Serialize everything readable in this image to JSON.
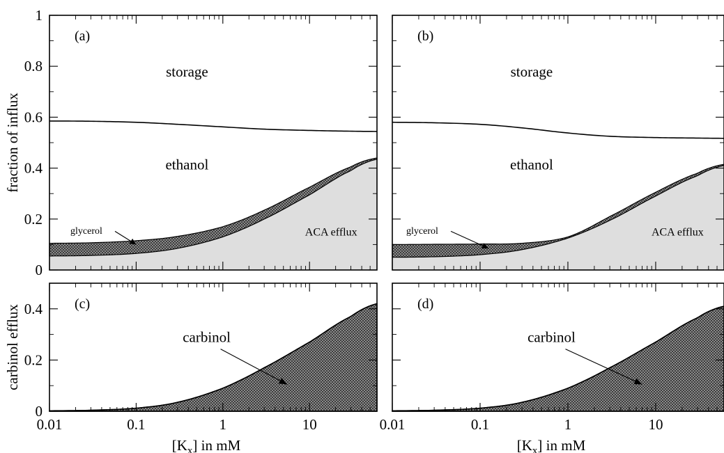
{
  "chart_data": [
    {
      "panel": "a",
      "type": "area",
      "xscale": "log",
      "xlim": [
        0.01,
        60
      ],
      "ylim": [
        0,
        1
      ],
      "xticks": [
        0.01,
        0.1,
        1,
        10
      ],
      "xtick_labels": [
        "",
        "",
        "",
        ""
      ],
      "yticks": [
        0,
        0.2,
        0.4,
        0.6,
        0.8,
        1
      ],
      "ytick_labels": [
        "0",
        "0.2",
        "0.4",
        "0.6",
        "0.8",
        "1"
      ],
      "ylabel": "fraction of influx",
      "xlabel": "",
      "panel_label": "(a)",
      "x": [
        0.01,
        0.03,
        0.1,
        0.3,
        1,
        3,
        10,
        30,
        60
      ],
      "aca_top": [
        0.055,
        0.057,
        0.065,
        0.085,
        0.13,
        0.2,
        0.295,
        0.39,
        0.435
      ],
      "glycerol_top": [
        0.105,
        0.107,
        0.115,
        0.132,
        0.17,
        0.235,
        0.325,
        0.405,
        0.44
      ],
      "ethanol_top": [
        0.585,
        0.584,
        0.58,
        0.572,
        0.562,
        0.553,
        0.548,
        0.545,
        0.544
      ],
      "region_labels": {
        "storage": "storage",
        "ethanol": "ethanol",
        "glycerol": "glycerol",
        "aca": "ACA efflux"
      }
    },
    {
      "panel": "b",
      "type": "area",
      "xscale": "log",
      "xlim": [
        0.01,
        60
      ],
      "ylim": [
        0,
        1
      ],
      "xticks": [
        0.01,
        0.1,
        1,
        10
      ],
      "xtick_labels": [
        "",
        "",
        "",
        ""
      ],
      "yticks": [
        0,
        0.2,
        0.4,
        0.6,
        0.8,
        1
      ],
      "ytick_labels": [
        "",
        "",
        "",
        "",
        "",
        ""
      ],
      "ylabel": "",
      "xlabel": "",
      "panel_label": "(b)",
      "x": [
        0.01,
        0.03,
        0.1,
        0.3,
        1,
        3,
        10,
        30,
        60
      ],
      "aca_top": [
        0.05,
        0.052,
        0.06,
        0.08,
        0.125,
        0.195,
        0.29,
        0.37,
        0.41
      ],
      "glycerol_top": [
        0.1,
        0.101,
        0.102,
        0.105,
        0.13,
        0.21,
        0.305,
        0.38,
        0.415
      ],
      "ethanol_top": [
        0.58,
        0.578,
        0.572,
        0.558,
        0.538,
        0.525,
        0.52,
        0.518,
        0.517
      ],
      "region_labels": {
        "storage": "storage",
        "ethanol": "ethanol",
        "glycerol": "glycerol",
        "aca": "ACA efflux"
      }
    },
    {
      "panel": "c",
      "type": "area",
      "xscale": "log",
      "xlim": [
        0.01,
        60
      ],
      "ylim": [
        0,
        0.5
      ],
      "xticks": [
        0.01,
        0.1,
        1,
        10
      ],
      "xtick_labels": [
        "0.01",
        "0.1",
        "1",
        "10"
      ],
      "yticks": [
        0,
        0.2,
        0.4
      ],
      "ytick_labels": [
        "0",
        "0.2",
        "0.4"
      ],
      "ylabel": "carbinol efflux",
      "xlabel": "[K_x] in mM",
      "panel_label": "(c)",
      "x": [
        0.01,
        0.03,
        0.1,
        0.3,
        1,
        3,
        10,
        30,
        60
      ],
      "carbinol": [
        0.002,
        0.004,
        0.012,
        0.035,
        0.09,
        0.17,
        0.27,
        0.37,
        0.42
      ],
      "region_labels": {
        "carbinol": "carbinol"
      }
    },
    {
      "panel": "d",
      "type": "area",
      "xscale": "log",
      "xlim": [
        0.01,
        60
      ],
      "ylim": [
        0,
        0.5
      ],
      "xticks": [
        0.01,
        0.1,
        1,
        10
      ],
      "xtick_labels": [
        "0.01",
        "0.1",
        "1",
        "10"
      ],
      "yticks": [
        0,
        0.2,
        0.4
      ],
      "ytick_labels": [
        "",
        "",
        ""
      ],
      "ylabel": "",
      "xlabel": "[K_x] in mM",
      "panel_label": "(d)",
      "x": [
        0.01,
        0.03,
        0.1,
        0.3,
        1,
        3,
        10,
        30,
        60
      ],
      "carbinol": [
        0.002,
        0.004,
        0.012,
        0.035,
        0.09,
        0.17,
        0.27,
        0.365,
        0.41
      ],
      "region_labels": {
        "carbinol": "carbinol"
      }
    }
  ]
}
